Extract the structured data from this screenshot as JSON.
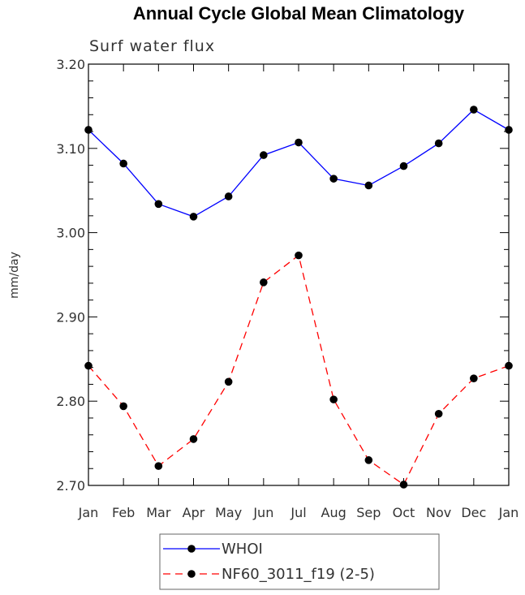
{
  "chart_data": {
    "type": "line",
    "title": "Annual Cycle Global Mean Climatology",
    "subtitle": "Surf water flux",
    "xlabel": "",
    "ylabel": "mm/day",
    "categories": [
      "Jan",
      "Feb",
      "Mar",
      "Apr",
      "May",
      "Jun",
      "Jul",
      "Aug",
      "Sep",
      "Oct",
      "Nov",
      "Dec",
      "Jan"
    ],
    "ylim": [
      2.7,
      3.2
    ],
    "yticks": [
      2.7,
      2.8,
      2.9,
      3.0,
      3.1,
      3.2
    ],
    "ytick_labels": [
      "2.70",
      "2.80",
      "2.90",
      "3.00",
      "3.10",
      "3.20"
    ],
    "series": [
      {
        "name": "WHOI",
        "color": "#0000ff",
        "dash": "solid",
        "values": [
          3.122,
          3.082,
          3.034,
          3.019,
          3.043,
          3.092,
          3.107,
          3.064,
          3.056,
          3.079,
          3.106,
          3.146,
          3.122
        ]
      },
      {
        "name": "NF60_3011_f19 (2-5)",
        "color": "#ff0000",
        "dash": "dashed",
        "values": [
          2.842,
          2.794,
          2.723,
          2.755,
          2.823,
          2.941,
          2.973,
          2.802,
          2.73,
          2.701,
          2.785,
          2.827,
          2.842
        ]
      }
    ],
    "legend_position": "bottom"
  }
}
